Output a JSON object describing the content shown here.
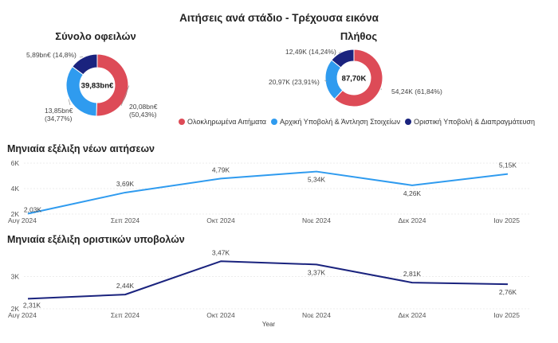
{
  "page_title": "Αιτήσεις ανά στάδιο - Τρέχουσα εικόνα",
  "colors": {
    "completed": "#dd4b57",
    "initial": "#2f9bef",
    "final": "#1a237e",
    "line_new": "#2f9bef",
    "line_final": "#1a237e"
  },
  "legend": {
    "items": [
      {
        "label": "Ολοκληρωμένα Αιτήματα",
        "color": "#dd4b57"
      },
      {
        "label": "Αρχική Υποβολή & Άντληση Στοιχείων",
        "color": "#2f9bef"
      },
      {
        "label": "Οριστική Υποβολή & Διαπραγμάτευση",
        "color": "#1a237e"
      }
    ]
  },
  "chart_data": [
    {
      "type": "pie",
      "variant": "donut",
      "title": "Σύνολο οφειλών",
      "center_label": "39,83bn€",
      "slices": [
        {
          "name": "Ολοκληρωμένα Αιτήματα",
          "value": 20.08,
          "label": "20,08bn€",
          "pct_label": "(50,43%)"
        },
        {
          "name": "Αρχική Υποβολή & Άντληση Στοιχείων",
          "value": 13.85,
          "label": "13,85bn€",
          "pct_label": "(34,77%)"
        },
        {
          "name": "Οριστική Υποβολή & Διαπραγμάτευση",
          "value": 5.89,
          "label": "5,89bn€ (14,8%)",
          "pct_label": ""
        }
      ]
    },
    {
      "type": "pie",
      "variant": "donut",
      "title": "Πλήθος",
      "center_label": "87,70K",
      "slices": [
        {
          "name": "Ολοκληρωμένα Αιτήματα",
          "value": 54.24,
          "label": "54,24K (61,84%)"
        },
        {
          "name": "Αρχική Υποβολή & Άντληση Στοιχείων",
          "value": 20.97,
          "label": "20,97K (23,91%)"
        },
        {
          "name": "Οριστική Υποβολή & Διαπραγμάτευση",
          "value": 12.49,
          "label": "12,49K (14,24%)"
        }
      ]
    },
    {
      "type": "line",
      "title": "Μηνιαία εξέλιξη νέων αιτήσεων",
      "categories": [
        "Αυγ 2024",
        "Σεπ 2024",
        "Οκτ 2024",
        "Νοε 2024",
        "Δεκ 2024",
        "Ιαν 2025"
      ],
      "values": [
        2.03,
        3.69,
        4.79,
        5.34,
        4.26,
        5.15
      ],
      "data_labels": [
        "2,03K",
        "3,69K",
        "4,79K",
        "5,34K",
        "4,26K",
        "5,15K"
      ],
      "y_ticks": [
        "2K",
        "4K",
        "6K"
      ],
      "y_tick_values": [
        2,
        4,
        6
      ],
      "ylim": [
        2,
        6
      ],
      "xlabel": "",
      "ylabel": ""
    },
    {
      "type": "line",
      "title": "Μηνιαία εξέλιξη οριστικών υποβολών",
      "categories": [
        "Αυγ 2024",
        "Σεπ 2024",
        "Οκτ 2024",
        "Νοε 2024",
        "Δεκ 2024",
        "Ιαν 2025"
      ],
      "values": [
        2.31,
        2.44,
        3.47,
        3.37,
        2.81,
        2.76
      ],
      "data_labels": [
        "2,31K",
        "2,44K",
        "3,47K",
        "3,37K",
        "2,81K",
        "2,76K"
      ],
      "y_ticks": [
        "2K",
        "3K"
      ],
      "y_tick_values": [
        2,
        3
      ],
      "ylim": [
        2,
        3.6
      ],
      "xlabel": "Year",
      "ylabel": ""
    }
  ]
}
